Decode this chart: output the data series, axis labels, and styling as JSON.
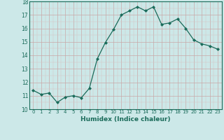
{
  "x": [
    0,
    1,
    2,
    3,
    4,
    5,
    6,
    7,
    8,
    9,
    10,
    11,
    12,
    13,
    14,
    15,
    16,
    17,
    18,
    19,
    20,
    21,
    22,
    23
  ],
  "y": [
    11.4,
    11.1,
    11.2,
    10.5,
    10.9,
    11.0,
    10.85,
    11.55,
    13.75,
    14.95,
    15.9,
    17.0,
    17.3,
    17.6,
    17.3,
    17.6,
    16.3,
    16.4,
    16.7,
    16.0,
    15.15,
    14.85,
    14.7,
    14.45
  ],
  "xlabel": "Humidex (Indice chaleur)",
  "ylim": [
    10,
    18
  ],
  "xlim": [
    -0.5,
    23.5
  ],
  "yticks": [
    10,
    11,
    12,
    13,
    14,
    15,
    16,
    17,
    18
  ],
  "xticks": [
    0,
    1,
    2,
    3,
    4,
    5,
    6,
    7,
    8,
    9,
    10,
    11,
    12,
    13,
    14,
    15,
    16,
    17,
    18,
    19,
    20,
    21,
    22,
    23
  ],
  "xtick_labels": [
    "0",
    "1",
    "2",
    "3",
    "4",
    "5",
    "6",
    "7",
    "8",
    "9",
    "10",
    "11",
    "12",
    "13",
    "14",
    "15",
    "16",
    "17",
    "18",
    "19",
    "20",
    "21",
    "22",
    "23"
  ],
  "line_color": "#1a6b5a",
  "marker_color": "#1a6b5a",
  "bg_color": "#cce8e8",
  "grid_color_major": "#c8a8a8"
}
